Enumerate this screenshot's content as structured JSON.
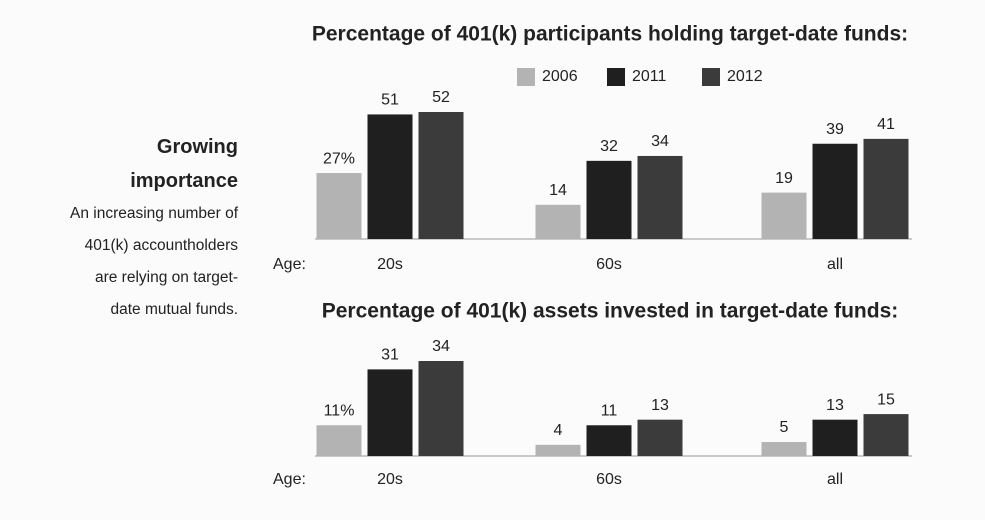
{
  "sidebar": {
    "heading": "Growing importance",
    "text": "An increasing number of 401(k) accountholders are relying on target-date mutual funds."
  },
  "chart_data": [
    {
      "type": "bar",
      "title": "Percentage of 401(k) participants holding target-date funds:",
      "x_label": "Age:",
      "categories": [
        "20s",
        "60s",
        "all"
      ],
      "legend": true,
      "series": [
        {
          "name": "2006",
          "color": "#b3b3b3",
          "values": [
            27,
            14,
            19
          ],
          "value_labels": [
            "27%",
            "14",
            "19"
          ]
        },
        {
          "name": "2011",
          "color": "#1f1f1f",
          "values": [
            51,
            32,
            39
          ]
        },
        {
          "name": "2012",
          "color": "#3b3b3b",
          "values": [
            52,
            34,
            41
          ]
        }
      ]
    },
    {
      "type": "bar",
      "title": "Percentage of 401(k) assets invested in target-date funds:",
      "x_label": "Age:",
      "categories": [
        "20s",
        "60s",
        "all"
      ],
      "legend": false,
      "series": [
        {
          "color": "#b3b3b3",
          "values": [
            11,
            4,
            5
          ],
          "value_labels": [
            "11%",
            "4",
            "5"
          ]
        },
        {
          "color": "#1f1f1f",
          "values": [
            31,
            11,
            13
          ]
        },
        {
          "color": "#3b3b3b",
          "values": [
            34,
            13,
            15
          ]
        }
      ]
    }
  ]
}
